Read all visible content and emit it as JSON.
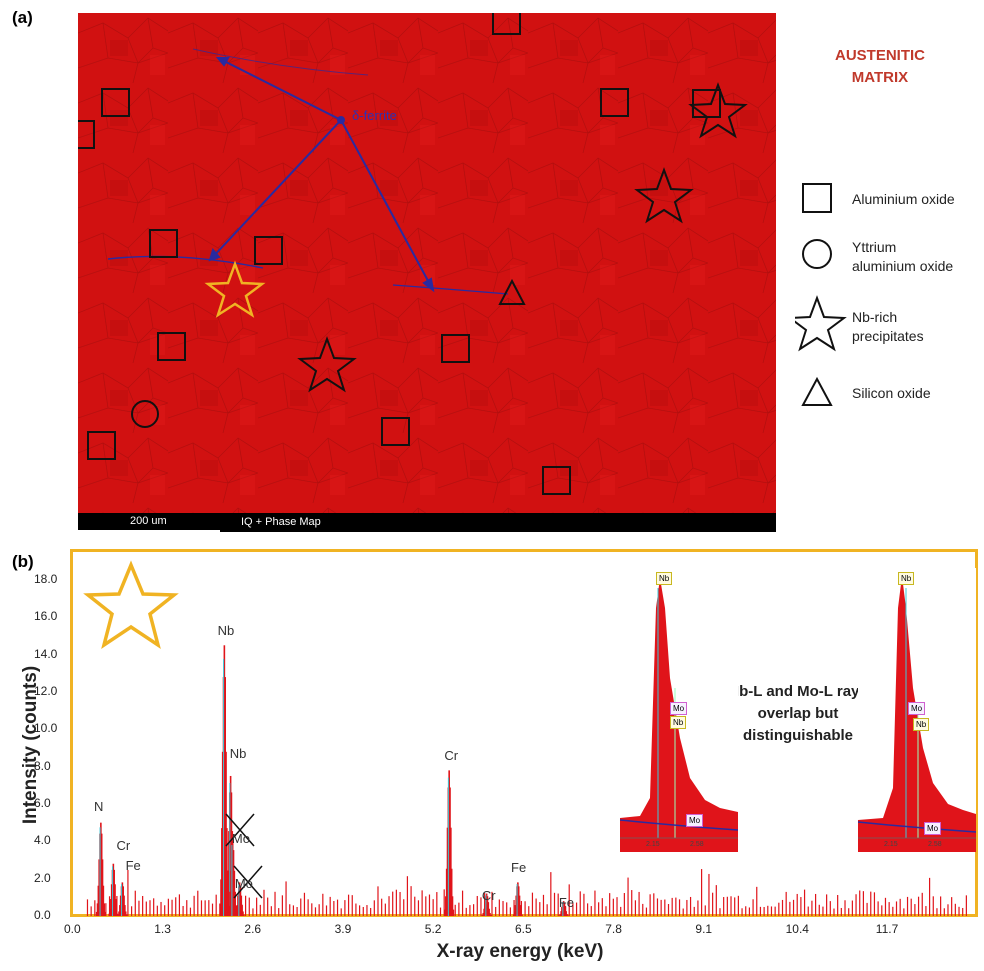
{
  "panels": {
    "a_label": "(a)",
    "b_label": "(b)"
  },
  "micrograph": {
    "matrix_label_line1": "AUSTENITIC",
    "matrix_label_line2": "MATRIX",
    "ferrite_label": "δ-ferrite",
    "scalebar_label": "200 um",
    "map_label": "IQ + Phase Map"
  },
  "legend": {
    "aluminium_oxide": "Aluminium oxide",
    "yttrium_line1": "Yttrium",
    "yttrium_line2": "aluminium oxide",
    "nb_line1": "Nb-rich",
    "nb_line2": "precipitates",
    "silicon_oxide": "Silicon oxide"
  },
  "colors": {
    "matrix_red": "#d01010",
    "ferrite_blue": "#2a2aa0",
    "highlight_gold": "#f0b323",
    "spectrum_red": "#e0141a",
    "fit_cyan": "#3ec8d8"
  },
  "chart_data": {
    "type": "bar",
    "xlabel": "X-ray energy (keV)",
    "ylabel": "Intensity (counts)",
    "xlim": [
      0,
      13.0
    ],
    "ylim": [
      0,
      18.8
    ],
    "xticks": [
      "0.0",
      "1.3",
      "2.6",
      "3.9",
      "5.2",
      "6.5",
      "7.8",
      "9.1",
      "10.4",
      "11.7"
    ],
    "yticks": [
      "0.0",
      "2.0",
      "4.0",
      "6.0",
      "8.0",
      "10.0",
      "12.0",
      "14.0",
      "16.0",
      "18.0"
    ],
    "peaks": [
      {
        "label": "N",
        "energy": 0.39,
        "counts": 5.0
      },
      {
        "label": "Cr",
        "energy": 0.57,
        "counts": 2.8
      },
      {
        "label": "Fe",
        "energy": 0.7,
        "counts": 1.8
      },
      {
        "label": "Nb",
        "energy": 2.17,
        "counts": 14.5
      },
      {
        "label": "Nb",
        "energy": 2.26,
        "counts": 7.5
      },
      {
        "label": "Mo",
        "energy": 2.29,
        "counts": 4.0
      },
      {
        "label": "Mo",
        "energy": 2.39,
        "counts": 1.8
      },
      {
        "label": "Cr",
        "energy": 5.41,
        "counts": 7.8
      },
      {
        "label": "Cr",
        "energy": 5.95,
        "counts": 1.2
      },
      {
        "label": "Fe",
        "energy": 6.4,
        "counts": 1.8
      },
      {
        "label": "Fe",
        "energy": 7.06,
        "counts": 0.8
      }
    ],
    "annotation": "Nb-L and Mo-L rays overlap but distinguishable",
    "insets": [
      {
        "ticks": [
          "2.15",
          "2.58"
        ],
        "labels": [
          "Nb",
          "Mo",
          "Nb",
          "Mo"
        ]
      },
      {
        "ticks": [
          "2.15",
          "2.58"
        ],
        "labels": [
          "Nb",
          "Mo",
          "Nb",
          "Mo"
        ]
      }
    ]
  }
}
